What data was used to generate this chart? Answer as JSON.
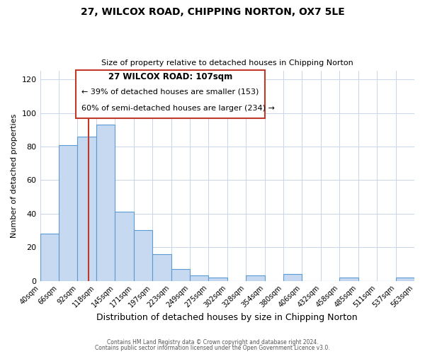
{
  "title": "27, WILCOX ROAD, CHIPPING NORTON, OX7 5LE",
  "subtitle": "Size of property relative to detached houses in Chipping Norton",
  "xlabel": "Distribution of detached houses by size in Chipping Norton",
  "ylabel": "Number of detached properties",
  "bar_values": [
    28,
    81,
    86,
    93,
    41,
    30,
    16,
    7,
    3,
    2,
    0,
    3,
    0,
    4,
    0,
    0,
    2,
    0,
    0,
    2
  ],
  "x_ticks": [
    "40sqm",
    "66sqm",
    "92sqm",
    "118sqm",
    "145sqm",
    "171sqm",
    "197sqm",
    "223sqm",
    "249sqm",
    "275sqm",
    "302sqm",
    "328sqm",
    "354sqm",
    "380sqm",
    "406sqm",
    "432sqm",
    "458sqm",
    "485sqm",
    "511sqm",
    "537sqm",
    "563sqm"
  ],
  "bar_color": "#c6d9f1",
  "bar_edge_color": "#5b9bd5",
  "vline_color": "#c0392b",
  "ylim": [
    0,
    125
  ],
  "yticks": [
    0,
    20,
    40,
    60,
    80,
    100,
    120
  ],
  "annotation_title": "27 WILCOX ROAD: 107sqm",
  "annotation_line1": "← 39% of detached houses are smaller (153)",
  "annotation_line2": "60% of semi-detached houses are larger (234) →",
  "annotation_box_color": "#c0392b",
  "footer1": "Contains HM Land Registry data © Crown copyright and database right 2024.",
  "footer2": "Contains public sector information licensed under the Open Government Licence v3.0.",
  "background_color": "#ffffff",
  "grid_color": "#c8d4e8"
}
